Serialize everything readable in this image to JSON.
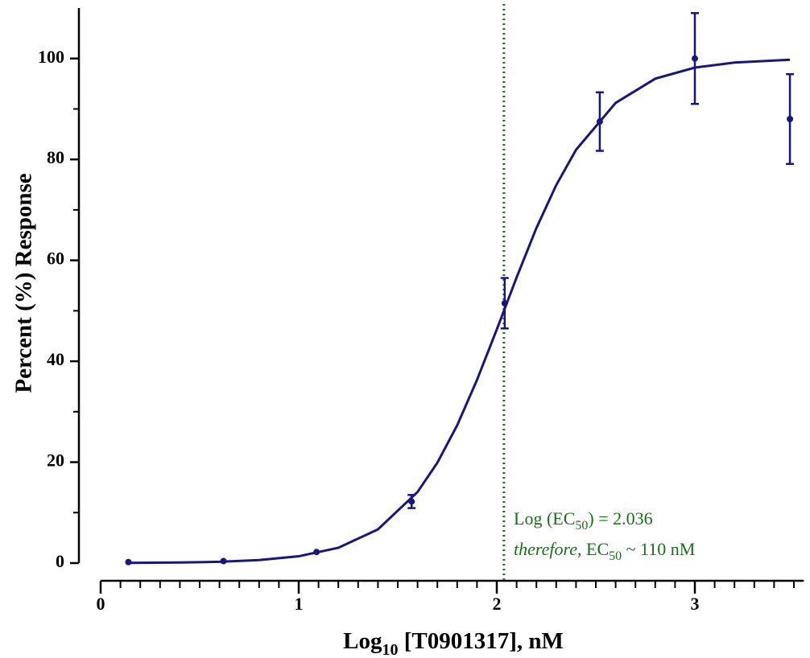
{
  "chart_data": {
    "type": "dose-response",
    "y_label": "Percent (%) Response",
    "x_label": {
      "parts": [
        "Log",
        "10",
        " [T0901317], nM"
      ]
    },
    "xlim": [
      0,
      3.55
    ],
    "xticks": [
      0,
      1,
      2,
      3
    ],
    "xminorticks": [
      0.1,
      0.2,
      0.3,
      0.4,
      0.5,
      0.6,
      0.7,
      0.8,
      0.9,
      1.1,
      1.2,
      1.3,
      1.4,
      1.5,
      1.6,
      1.7,
      1.8,
      1.9,
      2.1,
      2.2,
      2.3,
      2.4,
      2.5,
      2.6,
      2.7,
      2.8,
      2.9,
      3.1,
      3.2,
      3.3,
      3.4,
      3.5
    ],
    "ylim": [
      0,
      110
    ],
    "yticks": [
      0,
      20,
      40,
      60,
      80,
      100
    ],
    "yminorticks": [
      10,
      30,
      50,
      70,
      90
    ],
    "color": "#17177a",
    "points": {
      "x": [
        0.14,
        0.62,
        1.09,
        1.57,
        2.04,
        2.52,
        3.0,
        3.48
      ],
      "y": [
        0.2,
        0.4,
        2.2,
        12.2,
        51.5,
        87.5,
        100,
        88
      ],
      "err": [
        0,
        0,
        0,
        1.3,
        5,
        5.8,
        9,
        8.9
      ]
    },
    "curve": {
      "x": [
        0.14,
        0.4,
        0.6,
        0.8,
        1.0,
        1.2,
        1.4,
        1.6,
        1.7,
        1.8,
        1.9,
        2.0,
        2.1,
        2.2,
        2.3,
        2.4,
        2.6,
        2.8,
        3.0,
        3.2,
        3.48
      ],
      "y": [
        0.04,
        0.11,
        0.26,
        0.59,
        1.35,
        3.03,
        6.68,
        14.1,
        19.9,
        27.3,
        36.3,
        46.3,
        56.6,
        66.4,
        74.9,
        81.9,
        91.2,
        96.0,
        98.2,
        99.2,
        99.75
      ]
    },
    "vline": {
      "x": 2.036,
      "color": "#1b6e1b"
    },
    "annotations": [
      {
        "parts": [
          "Log (EC",
          "50",
          ") = 2.036"
        ]
      },
      {
        "parts": [
          "therefore",
          ", EC",
          "50",
          " ~ 110 nM"
        ]
      }
    ],
    "annotation_color": "#1b6e1b"
  }
}
